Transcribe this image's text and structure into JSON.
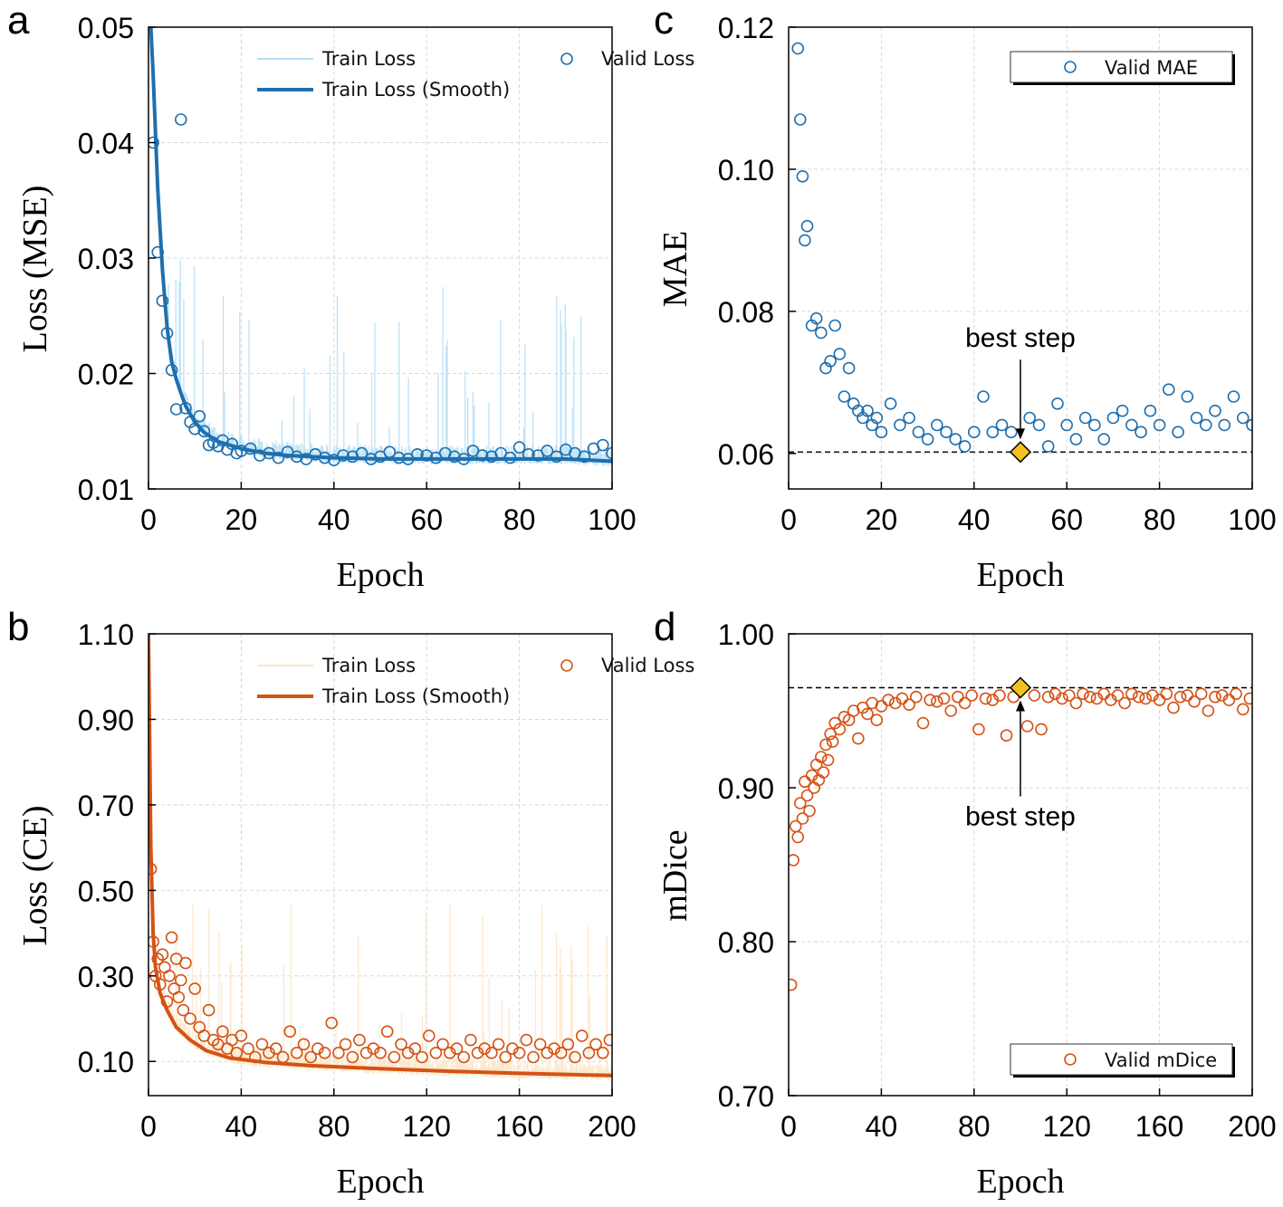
{
  "figure": {
    "colors": {
      "blue": "#1f6fae",
      "blue_light": "#b6e0f6",
      "orange": "#d55215",
      "orange_light": "#fde7c8",
      "marker_fill": "#f4c21f"
    }
  },
  "chart_data": [
    {
      "id": "a",
      "panel_label": "a",
      "type": "line",
      "xlabel": "Epoch",
      "ylabel": "Loss (MSE)",
      "xlim": [
        0,
        100
      ],
      "ylim": [
        0.01,
        0.05
      ],
      "xticks": [
        "0",
        "20",
        "40",
        "60",
        "80",
        "100"
      ],
      "yticks": [
        "0.01",
        "0.02",
        "0.03",
        "0.04",
        "0.05"
      ],
      "grid": true,
      "legend_position": "top-right",
      "legend": [
        "Train Loss",
        "Valid Loss",
        "Train Loss (Smooth)"
      ],
      "series": [
        {
          "name": "Train Loss (Smooth)",
          "style": "line",
          "x": [
            0.5,
            1,
            2,
            3,
            4,
            5,
            6,
            7,
            8,
            10,
            12,
            15,
            20,
            25,
            30,
            40,
            50,
            60,
            70,
            80,
            90,
            100
          ],
          "y": [
            0.05,
            0.046,
            0.036,
            0.029,
            0.024,
            0.021,
            0.0195,
            0.0183,
            0.0172,
            0.0158,
            0.0149,
            0.0141,
            0.0135,
            0.0131,
            0.0129,
            0.0127,
            0.0126,
            0.0126,
            0.0126,
            0.0126,
            0.0126,
            0.0124
          ]
        },
        {
          "name": "Valid Loss",
          "style": "scatter",
          "x": [
            1,
            2,
            3,
            4,
            5,
            6,
            7,
            8,
            9,
            10,
            11,
            12,
            13,
            14,
            15,
            16,
            17,
            18,
            19,
            20,
            22,
            24,
            26,
            28,
            30,
            32,
            34,
            36,
            38,
            40,
            42,
            44,
            46,
            48,
            50,
            52,
            54,
            56,
            58,
            60,
            62,
            64,
            66,
            68,
            70,
            72,
            74,
            76,
            78,
            80,
            82,
            84,
            86,
            88,
            90,
            92,
            94,
            96,
            98,
            100
          ],
          "y": [
            0.04,
            0.0305,
            0.0263,
            0.0235,
            0.0203,
            0.0169,
            0.042,
            0.017,
            0.0158,
            0.0152,
            0.0163,
            0.015,
            0.0138,
            0.014,
            0.0137,
            0.0142,
            0.0134,
            0.0139,
            0.0131,
            0.0133,
            0.0135,
            0.0129,
            0.0131,
            0.0127,
            0.0132,
            0.0128,
            0.0126,
            0.013,
            0.0127,
            0.0125,
            0.0129,
            0.0128,
            0.0131,
            0.0126,
            0.0128,
            0.0132,
            0.0127,
            0.0126,
            0.013,
            0.0129,
            0.0127,
            0.0131,
            0.0128,
            0.0126,
            0.0133,
            0.0129,
            0.0128,
            0.0131,
            0.0127,
            0.0136,
            0.013,
            0.0129,
            0.0133,
            0.0128,
            0.0134,
            0.0131,
            0.0128,
            0.0135,
            0.0138,
            0.0131
          ]
        }
      ]
    },
    {
      "id": "b",
      "panel_label": "b",
      "type": "line",
      "xlabel": "Epoch",
      "ylabel": "Loss (CE)",
      "xlim": [
        0,
        200
      ],
      "ylim": [
        0.02,
        1.1
      ],
      "xticks": [
        "0",
        "40",
        "80",
        "120",
        "160",
        "200"
      ],
      "yticks": [
        "0.10",
        "0.30",
        "0.50",
        "0.70",
        "0.90",
        "1.10"
      ],
      "grid": true,
      "legend_position": "top-right",
      "legend": [
        "Train Loss",
        "Valid Loss",
        "Train Loss (Smooth)"
      ],
      "series": [
        {
          "name": "Train Loss (Smooth)",
          "style": "line",
          "x": [
            0,
            1,
            2,
            3,
            5,
            8,
            12,
            18,
            25,
            35,
            50,
            70,
            100,
            130,
            160,
            200
          ],
          "y": [
            1.1,
            0.6,
            0.4,
            0.32,
            0.26,
            0.22,
            0.18,
            0.15,
            0.125,
            0.108,
            0.098,
            0.09,
            0.083,
            0.077,
            0.072,
            0.067
          ]
        },
        {
          "name": "Valid Loss",
          "style": "scatter",
          "x": [
            1,
            2,
            3,
            4,
            5,
            6,
            7,
            8,
            9,
            10,
            11,
            12,
            13,
            14,
            15,
            16,
            18,
            20,
            22,
            24,
            26,
            28,
            30,
            32,
            34,
            36,
            38,
            40,
            43,
            46,
            49,
            52,
            55,
            58,
            61,
            64,
            67,
            70,
            73,
            76,
            79,
            82,
            85,
            88,
            91,
            94,
            97,
            100,
            103,
            106,
            109,
            112,
            115,
            118,
            121,
            124,
            127,
            130,
            133,
            136,
            139,
            142,
            145,
            148,
            151,
            154,
            157,
            160,
            163,
            166,
            169,
            172,
            175,
            178,
            181,
            184,
            187,
            190,
            193,
            196,
            199
          ],
          "y": [
            0.55,
            0.38,
            0.3,
            0.34,
            0.28,
            0.35,
            0.32,
            0.24,
            0.3,
            0.39,
            0.27,
            0.34,
            0.25,
            0.29,
            0.22,
            0.33,
            0.2,
            0.27,
            0.18,
            0.16,
            0.22,
            0.15,
            0.14,
            0.17,
            0.13,
            0.15,
            0.12,
            0.16,
            0.13,
            0.11,
            0.14,
            0.12,
            0.13,
            0.11,
            0.17,
            0.12,
            0.14,
            0.11,
            0.13,
            0.12,
            0.19,
            0.12,
            0.14,
            0.11,
            0.15,
            0.12,
            0.13,
            0.12,
            0.17,
            0.11,
            0.14,
            0.12,
            0.13,
            0.11,
            0.16,
            0.12,
            0.14,
            0.12,
            0.13,
            0.11,
            0.15,
            0.12,
            0.13,
            0.12,
            0.14,
            0.11,
            0.13,
            0.12,
            0.15,
            0.11,
            0.14,
            0.12,
            0.13,
            0.12,
            0.14,
            0.11,
            0.16,
            0.12,
            0.14,
            0.12,
            0.15
          ]
        }
      ]
    },
    {
      "id": "c",
      "panel_label": "c",
      "type": "scatter",
      "xlabel": "Epoch",
      "ylabel": "MAE",
      "xlim": [
        0,
        100
      ],
      "ylim": [
        0.055,
        0.12
      ],
      "xticks": [
        "0",
        "20",
        "40",
        "60",
        "80",
        "100"
      ],
      "yticks": [
        "0.06",
        "0.08",
        "0.10",
        "0.12"
      ],
      "grid": true,
      "legend_position": "top-right",
      "legend": [
        "Valid MAE"
      ],
      "annotation": {
        "text": "best step",
        "x": 50,
        "y": 0.0602,
        "reference_line": 0.0602
      },
      "series": [
        {
          "name": "Valid MAE",
          "style": "scatter",
          "x": [
            2,
            2.5,
            3,
            3.5,
            4,
            5,
            6,
            7,
            8,
            9,
            10,
            11,
            12,
            13,
            14,
            15,
            16,
            17,
            18,
            19,
            20,
            22,
            24,
            26,
            28,
            30,
            32,
            34,
            36,
            38,
            40,
            42,
            44,
            46,
            48,
            50,
            52,
            54,
            56,
            58,
            60,
            62,
            64,
            66,
            68,
            70,
            72,
            74,
            76,
            78,
            80,
            82,
            84,
            86,
            88,
            90,
            92,
            94,
            96,
            98,
            100
          ],
          "y": [
            0.117,
            0.107,
            0.099,
            0.09,
            0.092,
            0.078,
            0.079,
            0.077,
            0.072,
            0.073,
            0.078,
            0.074,
            0.068,
            0.072,
            0.067,
            0.066,
            0.065,
            0.066,
            0.064,
            0.065,
            0.063,
            0.067,
            0.064,
            0.065,
            0.063,
            0.062,
            0.064,
            0.063,
            0.062,
            0.061,
            0.063,
            0.068,
            0.063,
            0.064,
            0.063,
            0.0602,
            0.065,
            0.064,
            0.061,
            0.067,
            0.064,
            0.062,
            0.065,
            0.064,
            0.062,
            0.065,
            0.066,
            0.064,
            0.063,
            0.066,
            0.064,
            0.069,
            0.063,
            0.068,
            0.065,
            0.064,
            0.066,
            0.064,
            0.068,
            0.065,
            0.064
          ]
        }
      ]
    },
    {
      "id": "d",
      "panel_label": "d",
      "type": "scatter",
      "xlabel": "Epoch",
      "ylabel": "mDice",
      "xlim": [
        0,
        200
      ],
      "ylim": [
        0.7,
        1.0
      ],
      "xticks": [
        "0",
        "40",
        "80",
        "120",
        "160",
        "200"
      ],
      "yticks": [
        "0.70",
        "0.80",
        "0.90",
        "1.00"
      ],
      "grid": true,
      "legend_position": "bottom-right",
      "legend": [
        "Valid mDice"
      ],
      "annotation": {
        "text": "best step",
        "x": 100,
        "y": 0.965,
        "reference_line": 0.965
      },
      "series": [
        {
          "name": "Valid mDice",
          "style": "scatter",
          "x": [
            1,
            2,
            3,
            4,
            5,
            6,
            7,
            8,
            9,
            10,
            11,
            12,
            13,
            14,
            15,
            16,
            17,
            18,
            19,
            20,
            22,
            24,
            26,
            28,
            30,
            32,
            34,
            36,
            38,
            40,
            43,
            46,
            49,
            52,
            55,
            58,
            61,
            64,
            67,
            70,
            73,
            76,
            79,
            82,
            85,
            88,
            91,
            94,
            97,
            100,
            103,
            106,
            109,
            112,
            115,
            118,
            121,
            124,
            127,
            130,
            133,
            136,
            139,
            142,
            145,
            148,
            151,
            154,
            157,
            160,
            163,
            166,
            169,
            172,
            175,
            178,
            181,
            184,
            187,
            190,
            193,
            196,
            199
          ],
          "y": [
            0.772,
            0.853,
            0.875,
            0.868,
            0.89,
            0.88,
            0.904,
            0.895,
            0.885,
            0.908,
            0.9,
            0.915,
            0.905,
            0.92,
            0.91,
            0.928,
            0.918,
            0.935,
            0.93,
            0.942,
            0.938,
            0.946,
            0.944,
            0.95,
            0.932,
            0.952,
            0.948,
            0.955,
            0.944,
            0.953,
            0.957,
            0.955,
            0.958,
            0.954,
            0.959,
            0.942,
            0.957,
            0.956,
            0.958,
            0.95,
            0.959,
            0.955,
            0.96,
            0.938,
            0.958,
            0.957,
            0.96,
            0.934,
            0.959,
            0.965,
            0.94,
            0.96,
            0.938,
            0.959,
            0.961,
            0.958,
            0.96,
            0.955,
            0.961,
            0.959,
            0.958,
            0.961,
            0.957,
            0.96,
            0.955,
            0.961,
            0.959,
            0.958,
            0.96,
            0.957,
            0.961,
            0.952,
            0.959,
            0.96,
            0.956,
            0.961,
            0.95,
            0.959,
            0.96,
            0.957,
            0.961,
            0.951,
            0.958
          ]
        }
      ]
    }
  ]
}
